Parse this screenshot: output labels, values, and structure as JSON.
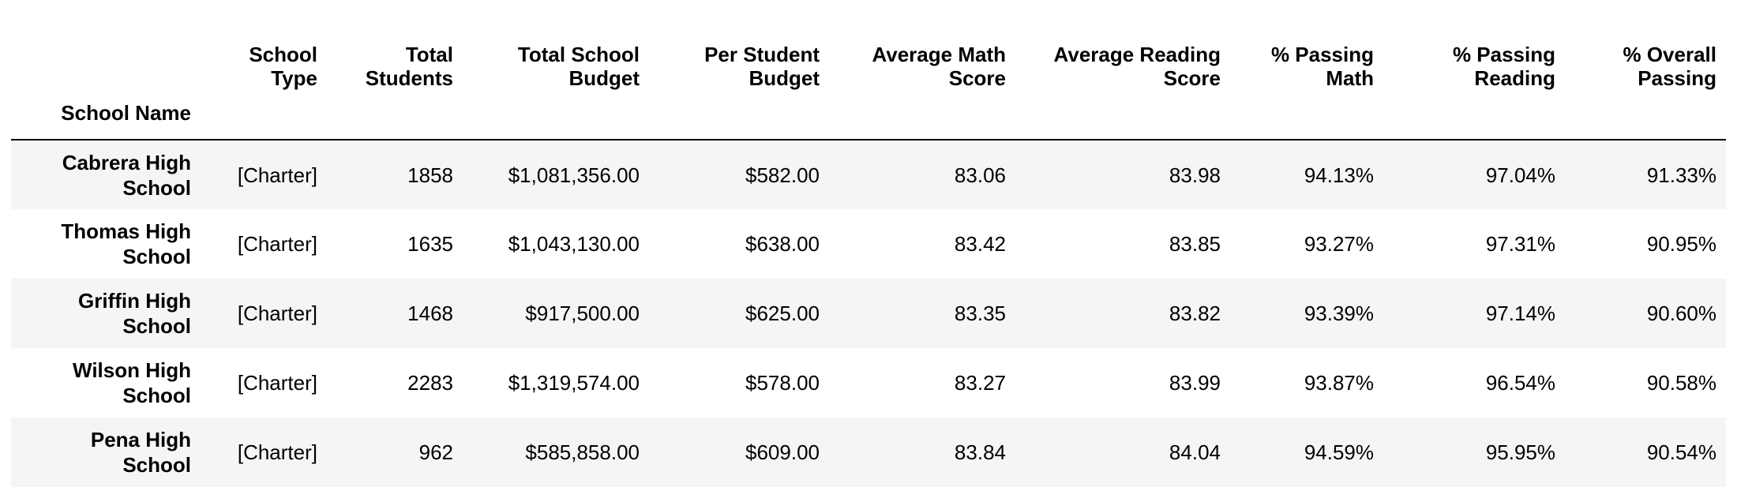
{
  "table": {
    "index_label": "School Name",
    "columns": [
      [
        "School",
        "Type"
      ],
      [
        "Total",
        "Students"
      ],
      [
        "Total School",
        "Budget"
      ],
      [
        "Per Student",
        "Budget"
      ],
      [
        "Average Math",
        "Score"
      ],
      [
        "Average Reading",
        "Score"
      ],
      [
        "% Passing",
        "Math"
      ],
      [
        "% Passing",
        "Reading"
      ],
      [
        "% Overall",
        "Passing"
      ]
    ],
    "rows": [
      {
        "name": [
          "Cabrera High",
          "School"
        ],
        "cells": [
          "[Charter]",
          "1858",
          "$1,081,356.00",
          "$582.00",
          "83.06",
          "83.98",
          "94.13%",
          "97.04%",
          "91.33%"
        ]
      },
      {
        "name": [
          "Thomas High",
          "School"
        ],
        "cells": [
          "[Charter]",
          "1635",
          "$1,043,130.00",
          "$638.00",
          "83.42",
          "83.85",
          "93.27%",
          "97.31%",
          "90.95%"
        ]
      },
      {
        "name": [
          "Griffin High",
          "School"
        ],
        "cells": [
          "[Charter]",
          "1468",
          "$917,500.00",
          "$625.00",
          "83.35",
          "83.82",
          "93.39%",
          "97.14%",
          "90.60%"
        ]
      },
      {
        "name": [
          "Wilson High",
          "School"
        ],
        "cells": [
          "[Charter]",
          "2283",
          "$1,319,574.00",
          "$578.00",
          "83.27",
          "83.99",
          "93.87%",
          "96.54%",
          "90.58%"
        ]
      },
      {
        "name": [
          "Pena High",
          "School"
        ],
        "cells": [
          "[Charter]",
          "962",
          "$585,858.00",
          "$609.00",
          "83.84",
          "84.04",
          "94.59%",
          "95.95%",
          "90.54%"
        ]
      }
    ]
  }
}
